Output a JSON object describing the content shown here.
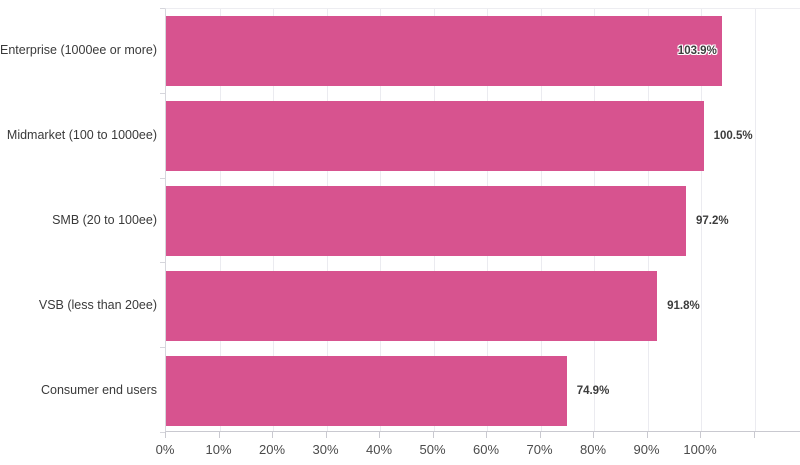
{
  "chart_data": {
    "type": "bar",
    "orientation": "horizontal",
    "title": "",
    "xlabel": "",
    "ylabel": "",
    "categories": [
      "Enterprise (1000ee or more)",
      "Midmarket (100 to 1000ee)",
      "SMB (20 to 100ee)",
      "VSB (less than 20ee)",
      "Consumer end users"
    ],
    "values": [
      103.9,
      100.5,
      97.2,
      91.8,
      74.9
    ],
    "value_labels": [
      "103.9%",
      "100.5%",
      "97.2%",
      "91.8%",
      "74.9%"
    ],
    "value_label_inside": [
      true,
      false,
      false,
      false,
      false
    ],
    "x_tick_values": [
      0,
      10,
      20,
      30,
      40,
      50,
      60,
      70,
      80,
      90,
      100
    ],
    "x_tick_labels": [
      "0%",
      "10%",
      "20%",
      "30%",
      "40%",
      "50%",
      "60%",
      "70%",
      "80%",
      "90%",
      "100%"
    ],
    "x_grid_values": [
      0,
      10,
      20,
      30,
      40,
      50,
      60,
      70,
      80,
      90,
      100,
      110
    ],
    "xlim": [
      0,
      118.7
    ],
    "grid": true,
    "legend": false,
    "colors": {
      "bar": "#d7538f",
      "category_text": "#3a3a3a",
      "value_text": "#3c3c3c",
      "tick_text": "#4b4b4b",
      "gridline": "#ebebf0",
      "axis_line": "#c9c9d0",
      "background": "#ffffff"
    }
  }
}
